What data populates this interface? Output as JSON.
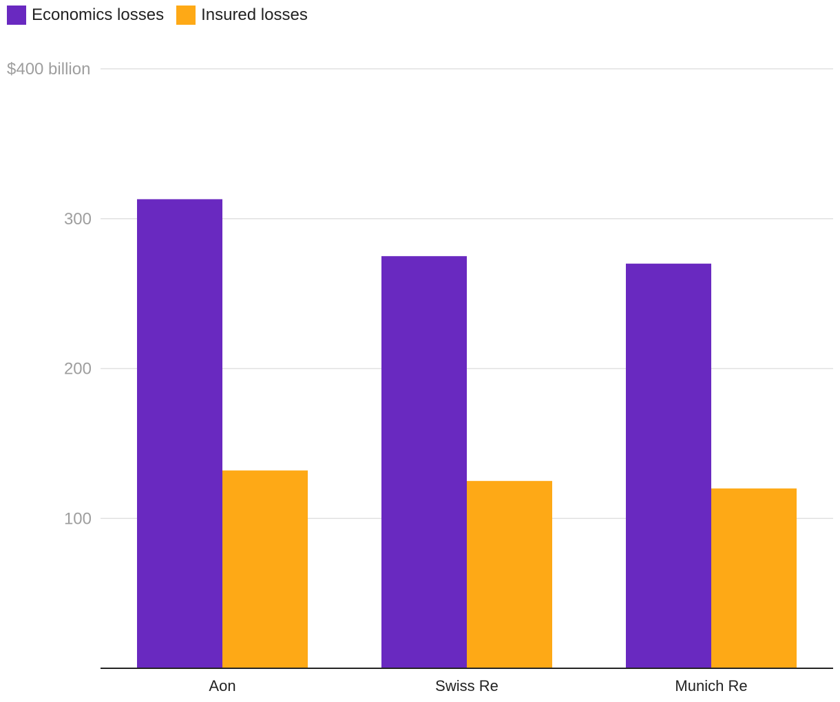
{
  "chart_data": {
    "type": "bar",
    "categories": [
      "Aon",
      "Swiss Re",
      "Munich Re"
    ],
    "series": [
      {
        "name": "Economics losses",
        "color": "#6929c0",
        "values": [
          313,
          275,
          270
        ]
      },
      {
        "name": "Insured losses",
        "color": "#fea916",
        "values": [
          132,
          125,
          120
        ]
      }
    ],
    "y_ticks": [
      {
        "value": 100,
        "label": "100"
      },
      {
        "value": 200,
        "label": "200"
      },
      {
        "value": 300,
        "label": "300"
      },
      {
        "value": 400,
        "label": "$400 billion"
      }
    ],
    "ylim": [
      0,
      400
    ],
    "legend_position": "top-left",
    "grid": true
  }
}
